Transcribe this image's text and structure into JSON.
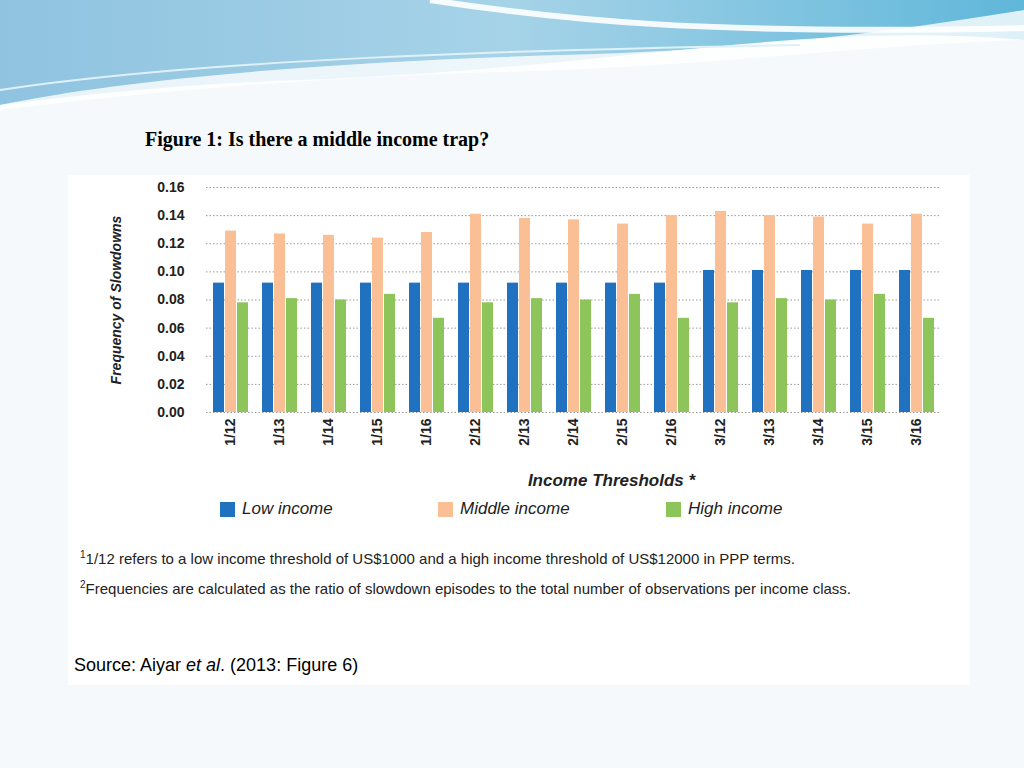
{
  "figure_title": "Figure 1: Is there a middle income trap?",
  "chart_data": {
    "type": "bar",
    "categories": [
      "1/12",
      "1/13",
      "1/14",
      "1/15",
      "1/16",
      "2/12",
      "2/13",
      "2/14",
      "2/15",
      "2/16",
      "3/12",
      "3/13",
      "3/14",
      "3/15",
      "3/16"
    ],
    "series": [
      {
        "name": "Low income",
        "color": "#2171c1",
        "values": [
          0.092,
          0.092,
          0.092,
          0.092,
          0.092,
          0.092,
          0.092,
          0.092,
          0.092,
          0.092,
          0.101,
          0.101,
          0.101,
          0.101,
          0.101
        ]
      },
      {
        "name": "Middle income",
        "color": "#fbbf95",
        "values": [
          0.129,
          0.127,
          0.126,
          0.124,
          0.128,
          0.141,
          0.138,
          0.137,
          0.134,
          0.14,
          0.143,
          0.14,
          0.139,
          0.134,
          0.141
        ]
      },
      {
        "name": "High income",
        "color": "#8dc55b",
        "values": [
          0.078,
          0.081,
          0.08,
          0.084,
          0.067,
          0.078,
          0.081,
          0.08,
          0.084,
          0.067,
          0.078,
          0.081,
          0.08,
          0.084,
          0.067
        ]
      }
    ],
    "x_label": "Income Thresholds *",
    "y_label": "Frequency of Slowdowns",
    "ylim": [
      0,
      0.16
    ],
    "yticks": [
      {
        "value": 0,
        "label": "0.00"
      },
      {
        "value": 0.02,
        "label": "0.02"
      },
      {
        "value": 0.04,
        "label": "0.04"
      },
      {
        "value": 0.06,
        "label": "0.06"
      },
      {
        "value": 0.08,
        "label": "0.08"
      },
      {
        "value": 0.1,
        "label": "0.10"
      },
      {
        "value": 0.12,
        "label": "0.12"
      },
      {
        "value": 0.14,
        "label": "0.14"
      },
      {
        "value": 0.16,
        "label": "0.16"
      }
    ],
    "grid": true,
    "legend": "bottom"
  },
  "footnotes": [
    {
      "mark": "1",
      "text": "1/12 refers to a low income threshold of US$1000 and a high income threshold of US$12000 in PPP terms."
    },
    {
      "mark": "2",
      "text": "Frequencies are calculated as the ratio of slowdown episodes to the total number of observations per income class."
    }
  ],
  "source": [
    {
      "text": "Source: Aiyar "
    },
    {
      "text": "et al",
      "italic": true
    },
    {
      "text": ". (2013: Figure 6)"
    }
  ]
}
